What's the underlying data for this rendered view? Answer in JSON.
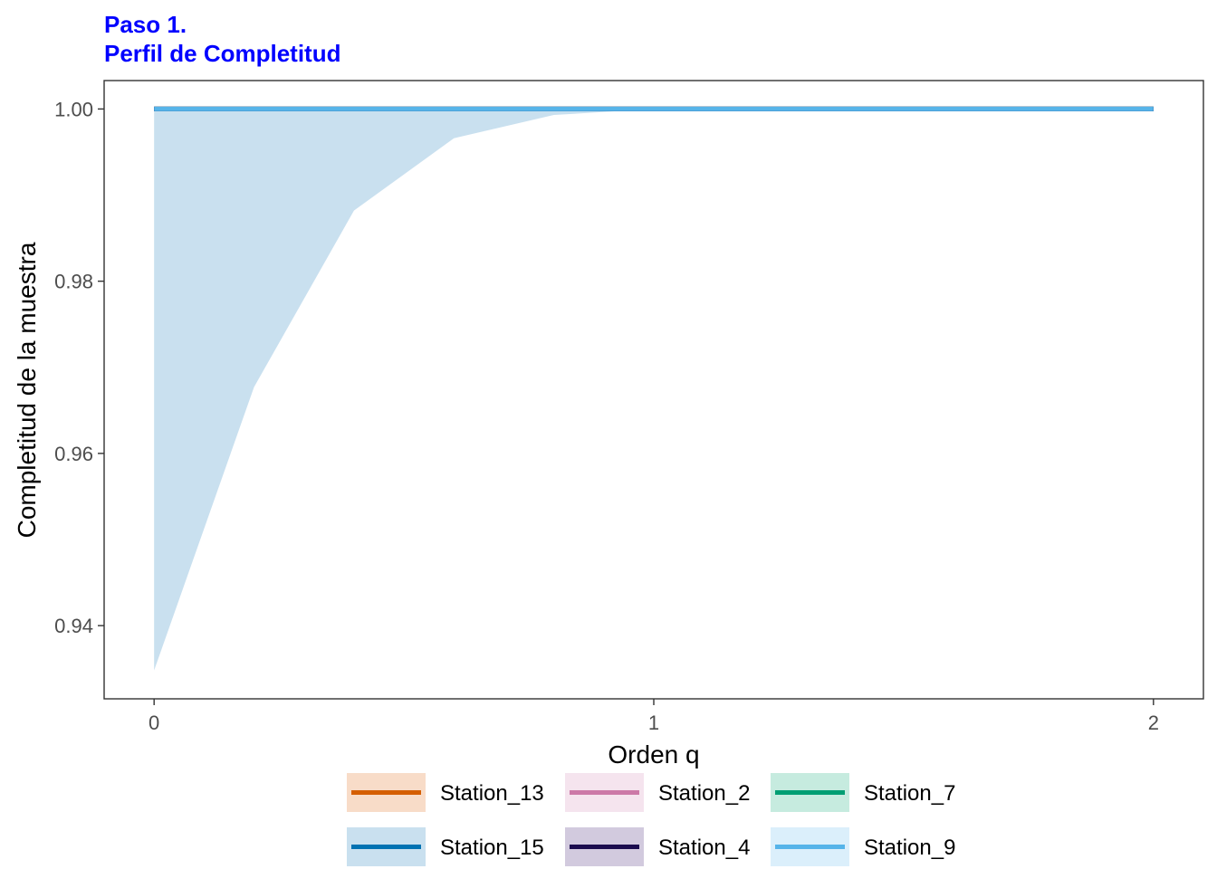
{
  "title_lines": [
    "Paso 1.",
    "Perfil de Completitud"
  ],
  "title_color": "#0000ff",
  "chart_data": {
    "type": "line",
    "title": "Paso 1.\nPerfil de Completitud",
    "xlabel": "Orden q",
    "ylabel": "Completitud de la muestra",
    "xlim": [
      -0.1,
      2.1
    ],
    "ylim": [
      0.9315,
      1.0033
    ],
    "x_ticks": [
      0,
      1,
      2
    ],
    "x_tick_labels": [
      "0",
      "1",
      "2"
    ],
    "y_ticks": [
      0.94,
      0.96,
      0.98,
      1.0
    ],
    "y_tick_labels": [
      "0.94",
      "0.96",
      "0.98",
      "1.00"
    ],
    "grid": false,
    "legend_position": "bottom",
    "series": [
      {
        "name": "Station_13",
        "color": "#d55e00",
        "fill": "#f8dcc8",
        "x": [
          0,
          2
        ],
        "y": [
          1.0,
          1.0
        ]
      },
      {
        "name": "Station_2",
        "color": "#cc79a7",
        "fill": "#f5e4ee",
        "x": [
          0,
          2
        ],
        "y": [
          1.0,
          1.0
        ]
      },
      {
        "name": "Station_7",
        "color": "#009e73",
        "fill": "#c6ebdf",
        "x": [
          0,
          2
        ],
        "y": [
          1.0,
          1.0
        ]
      },
      {
        "name": "Station_15",
        "color": "#0072b2",
        "fill": "#c9e0ef",
        "x": [
          0,
          2
        ],
        "y": [
          1.0,
          1.0
        ]
      },
      {
        "name": "Station_4",
        "color": "#1b0c4e",
        "fill": "#d2cade",
        "x": [
          0,
          2
        ],
        "y": [
          1.0,
          1.0
        ]
      },
      {
        "name": "Station_9",
        "color": "#56b4e9",
        "fill": "#dbeffb",
        "x": [
          0,
          2
        ],
        "y": [
          1.0,
          1.0
        ]
      }
    ],
    "ribbon": {
      "series": "Station_15",
      "color": "#c9e0ef",
      "x": [
        0,
        0.2,
        0.4,
        0.6,
        0.8,
        1.0,
        1.2,
        1.4,
        1.6,
        1.8,
        2.0
      ],
      "lower": [
        0.9348,
        0.9677,
        0.9882,
        0.9966,
        0.9993,
        1.0,
        1.0,
        1.0,
        1.0,
        1.0,
        1.0
      ],
      "upper": [
        1.0,
        1.0,
        1.0,
        1.0,
        1.0,
        1.0,
        1.0,
        1.0,
        1.0,
        1.0,
        1.0
      ]
    }
  }
}
